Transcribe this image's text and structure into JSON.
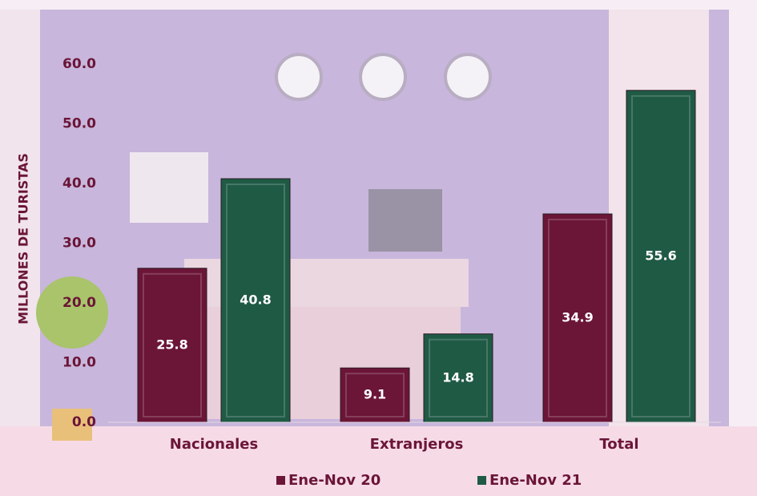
{
  "chart_data": {
    "type": "bar",
    "y_axis_label": "MILLONES DE TURISTAS",
    "categories": [
      "Nacionales",
      "Extranjeros",
      "Total"
    ],
    "series": [
      {
        "name": "Ene-Nov 20",
        "color": "#6b1537",
        "values": [
          25.8,
          9.1,
          34.9
        ]
      },
      {
        "name": "Ene-Nov 21",
        "color": "#1f5a45",
        "values": [
          40.8,
          14.8,
          55.6
        ]
      }
    ],
    "ylim": [
      0,
      60
    ],
    "yticks": [
      {
        "value": 0,
        "label": "0.0"
      },
      {
        "value": 10,
        "label": "10.0"
      },
      {
        "value": 20,
        "label": "20.0"
      },
      {
        "value": 30,
        "label": "30.0"
      },
      {
        "value": 40,
        "label": "40.0"
      },
      {
        "value": 50,
        "label": "50.0"
      },
      {
        "value": 60,
        "label": "60.0"
      }
    ]
  }
}
